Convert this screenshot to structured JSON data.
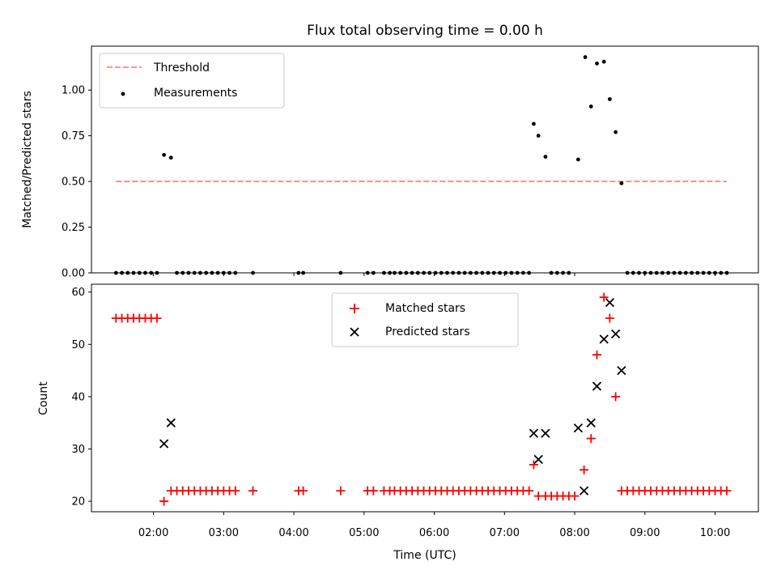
{
  "figure": {
    "title": "Flux total observing time = 0.00 h"
  },
  "chart_data": [
    {
      "type": "scatter",
      "title": "Flux total observing time = 0.00 h",
      "xlabel": "",
      "ylabel": "Matched/Predicted stars",
      "xlim": [
        "01:07",
        "10:37"
      ],
      "ylim": [
        0,
        1.24
      ],
      "yticks": [
        0.0,
        0.25,
        0.5,
        0.75,
        1.0
      ],
      "ytick_labels": [
        "0.00",
        "0.25",
        "0.50",
        "0.75",
        "1.00"
      ],
      "grid": false,
      "legend_location": "upper left",
      "threshold": {
        "name": "Threshold",
        "value": 0.5,
        "x_start": "01:28",
        "x_end": "10:10",
        "color": "#ff7373",
        "style": "dashed"
      },
      "series": [
        {
          "name": "Measurements",
          "color": "#000000",
          "points": [
            [
              "01:28",
              0
            ],
            [
              "01:33",
              0
            ],
            [
              "01:38",
              0
            ],
            [
              "01:43",
              0
            ],
            [
              "01:48",
              0
            ],
            [
              "01:53",
              0
            ],
            [
              "01:58",
              0
            ],
            [
              "02:03",
              0
            ],
            [
              "02:09",
              0.645
            ],
            [
              "02:15",
              0.63
            ],
            [
              "02:20",
              0
            ],
            [
              "02:25",
              0
            ],
            [
              "02:30",
              0
            ],
            [
              "02:35",
              0
            ],
            [
              "02:40",
              0
            ],
            [
              "02:45",
              0
            ],
            [
              "02:50",
              0
            ],
            [
              "02:55",
              0
            ],
            [
              "03:00",
              0
            ],
            [
              "03:05",
              0
            ],
            [
              "03:10",
              0
            ],
            [
              "03:25",
              0
            ],
            [
              "04:04",
              0
            ],
            [
              "04:08",
              0
            ],
            [
              "04:40",
              0
            ],
            [
              "05:03",
              0
            ],
            [
              "05:08",
              0
            ],
            [
              "05:17",
              0
            ],
            [
              "05:22",
              0
            ],
            [
              "05:26",
              0
            ],
            [
              "05:31",
              0
            ],
            [
              "05:36",
              0
            ],
            [
              "05:41",
              0
            ],
            [
              "05:46",
              0
            ],
            [
              "05:51",
              0
            ],
            [
              "05:56",
              0
            ],
            [
              "06:01",
              0
            ],
            [
              "06:06",
              0
            ],
            [
              "06:11",
              0
            ],
            [
              "06:16",
              0
            ],
            [
              "06:21",
              0
            ],
            [
              "06:26",
              0
            ],
            [
              "06:31",
              0
            ],
            [
              "06:36",
              0
            ],
            [
              "06:41",
              0
            ],
            [
              "06:46",
              0
            ],
            [
              "06:51",
              0
            ],
            [
              "06:56",
              0
            ],
            [
              "07:01",
              0
            ],
            [
              "07:06",
              0
            ],
            [
              "07:11",
              0
            ],
            [
              "07:16",
              0
            ],
            [
              "07:21",
              0
            ],
            [
              "07:25",
              0.815
            ],
            [
              "07:29",
              0.75
            ],
            [
              "07:35",
              0.635
            ],
            [
              "07:40",
              0
            ],
            [
              "07:45",
              0
            ],
            [
              "07:50",
              0
            ],
            [
              "07:55",
              0
            ],
            [
              "08:03",
              0.62
            ],
            [
              "08:09",
              1.18
            ],
            [
              "08:14",
              0.91
            ],
            [
              "08:19",
              1.145
            ],
            [
              "08:25",
              1.155
            ],
            [
              "08:30",
              0.95
            ],
            [
              "08:35",
              0.77
            ],
            [
              "08:40",
              0.49
            ],
            [
              "08:45",
              0
            ],
            [
              "08:50",
              0
            ],
            [
              "08:55",
              0
            ],
            [
              "09:00",
              0
            ],
            [
              "09:05",
              0
            ],
            [
              "09:10",
              0
            ],
            [
              "09:15",
              0
            ],
            [
              "09:20",
              0
            ],
            [
              "09:25",
              0
            ],
            [
              "09:30",
              0
            ],
            [
              "09:35",
              0
            ],
            [
              "09:40",
              0
            ],
            [
              "09:45",
              0
            ],
            [
              "09:50",
              0
            ],
            [
              "09:55",
              0
            ],
            [
              "10:00",
              0
            ],
            [
              "10:05",
              0
            ],
            [
              "10:10",
              0
            ]
          ]
        }
      ]
    },
    {
      "type": "scatter",
      "title": "",
      "xlabel": "Time (UTC)",
      "ylabel": "Count",
      "xlim": [
        "01:07",
        "10:37"
      ],
      "ylim": [
        18,
        61.5
      ],
      "yticks": [
        20,
        30,
        40,
        50,
        60
      ],
      "ytick_labels": [
        "20",
        "30",
        "40",
        "50",
        "60"
      ],
      "xticks": [
        "02:00",
        "03:00",
        "04:00",
        "05:00",
        "06:00",
        "07:00",
        "08:00",
        "09:00",
        "10:00"
      ],
      "grid": false,
      "legend_location": "upper center",
      "series": [
        {
          "name": "Matched stars",
          "marker": "+",
          "color": "#ff0000",
          "points": [
            [
              "01:28",
              55
            ],
            [
              "01:33",
              55
            ],
            [
              "01:38",
              55
            ],
            [
              "01:43",
              55
            ],
            [
              "01:48",
              55
            ],
            [
              "01:53",
              55
            ],
            [
              "01:58",
              55
            ],
            [
              "02:03",
              55
            ],
            [
              "02:09",
              20
            ],
            [
              "02:15",
              22
            ],
            [
              "02:20",
              22
            ],
            [
              "02:25",
              22
            ],
            [
              "02:30",
              22
            ],
            [
              "02:35",
              22
            ],
            [
              "02:40",
              22
            ],
            [
              "02:45",
              22
            ],
            [
              "02:50",
              22
            ],
            [
              "02:55",
              22
            ],
            [
              "03:00",
              22
            ],
            [
              "03:05",
              22
            ],
            [
              "03:10",
              22
            ],
            [
              "03:25",
              22
            ],
            [
              "04:04",
              22
            ],
            [
              "04:08",
              22
            ],
            [
              "04:40",
              22
            ],
            [
              "05:03",
              22
            ],
            [
              "05:08",
              22
            ],
            [
              "05:17",
              22
            ],
            [
              "05:22",
              22
            ],
            [
              "05:26",
              22
            ],
            [
              "05:31",
              22
            ],
            [
              "05:36",
              22
            ],
            [
              "05:41",
              22
            ],
            [
              "05:46",
              22
            ],
            [
              "05:51",
              22
            ],
            [
              "05:56",
              22
            ],
            [
              "06:01",
              22
            ],
            [
              "06:06",
              22
            ],
            [
              "06:11",
              22
            ],
            [
              "06:16",
              22
            ],
            [
              "06:21",
              22
            ],
            [
              "06:26",
              22
            ],
            [
              "06:31",
              22
            ],
            [
              "06:36",
              22
            ],
            [
              "06:41",
              22
            ],
            [
              "06:46",
              22
            ],
            [
              "06:51",
              22
            ],
            [
              "06:56",
              22
            ],
            [
              "07:01",
              22
            ],
            [
              "07:06",
              22
            ],
            [
              "07:11",
              22
            ],
            [
              "07:16",
              22
            ],
            [
              "07:21",
              22
            ],
            [
              "07:25",
              27
            ],
            [
              "07:29",
              21
            ],
            [
              "07:35",
              21
            ],
            [
              "07:40",
              21
            ],
            [
              "07:45",
              21
            ],
            [
              "07:50",
              21
            ],
            [
              "07:55",
              21
            ],
            [
              "08:00",
              21
            ],
            [
              "08:08",
              26
            ],
            [
              "08:14",
              32
            ],
            [
              "08:19",
              48
            ],
            [
              "08:25",
              59
            ],
            [
              "08:30",
              55
            ],
            [
              "08:35",
              40
            ],
            [
              "08:40",
              22
            ],
            [
              "08:45",
              22
            ],
            [
              "08:50",
              22
            ],
            [
              "08:55",
              22
            ],
            [
              "09:00",
              22
            ],
            [
              "09:05",
              22
            ],
            [
              "09:10",
              22
            ],
            [
              "09:15",
              22
            ],
            [
              "09:20",
              22
            ],
            [
              "09:25",
              22
            ],
            [
              "09:30",
              22
            ],
            [
              "09:35",
              22
            ],
            [
              "09:40",
              22
            ],
            [
              "09:45",
              22
            ],
            [
              "09:50",
              22
            ],
            [
              "09:55",
              22
            ],
            [
              "10:00",
              22
            ],
            [
              "10:05",
              22
            ],
            [
              "10:10",
              22
            ]
          ]
        },
        {
          "name": "Predicted stars",
          "marker": "x",
          "color": "#000000",
          "points": [
            [
              "02:09",
              31
            ],
            [
              "02:15",
              35
            ],
            [
              "07:25",
              33
            ],
            [
              "07:29",
              28
            ],
            [
              "07:35",
              33
            ],
            [
              "08:03",
              34
            ],
            [
              "08:08",
              22
            ],
            [
              "08:14",
              35
            ],
            [
              "08:19",
              42
            ],
            [
              "08:25",
              51
            ],
            [
              "08:30",
              58
            ],
            [
              "08:35",
              52
            ],
            [
              "08:40",
              45
            ]
          ]
        }
      ]
    }
  ]
}
